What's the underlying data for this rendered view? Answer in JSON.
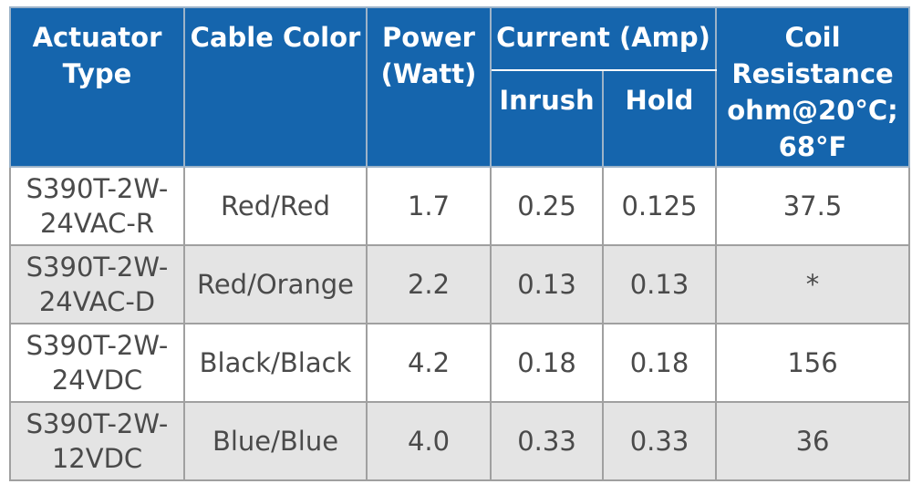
{
  "header": {
    "actuator_type": [
      "Actuator",
      "Type"
    ],
    "cable_color": "Cable Color",
    "power": [
      "Power",
      "(Watt)"
    ],
    "current": "Current (Amp)",
    "inrush": "Inrush",
    "hold": "Hold",
    "coil_resistance": [
      "Coil",
      "Resistance",
      "ohm@20°C;",
      "68°F"
    ]
  },
  "rows": [
    {
      "actuator_type": [
        "S390T-2W-",
        "24VAC-R"
      ],
      "cable_color": "Red/Red",
      "power": "1.7",
      "inrush": "0.25",
      "hold": "0.125",
      "coil_resistance": "37.5"
    },
    {
      "actuator_type": [
        "S390T-2W-",
        "24VAC-D"
      ],
      "cable_color": "Red/Orange",
      "power": "2.2",
      "inrush": "0.13",
      "hold": "0.13",
      "coil_resistance": "*"
    },
    {
      "actuator_type": [
        "S390T-2W-",
        "24VDC"
      ],
      "cable_color": "Black/Black",
      "power": "4.2",
      "inrush": "0.18",
      "hold": "0.18",
      "coil_resistance": "156"
    },
    {
      "actuator_type": [
        "S390T-2W-",
        "12VDC"
      ],
      "cable_color": "Blue/Blue",
      "power": "4.0",
      "inrush": "0.33",
      "hold": "0.33",
      "coil_resistance": "36"
    }
  ],
  "colors": {
    "header_background": "#1565ad",
    "header_text": "#ffffff",
    "body_text": "#4a4a4a",
    "alternate_row": "#e4e4e4",
    "grid_line": "#a0a0a0"
  }
}
